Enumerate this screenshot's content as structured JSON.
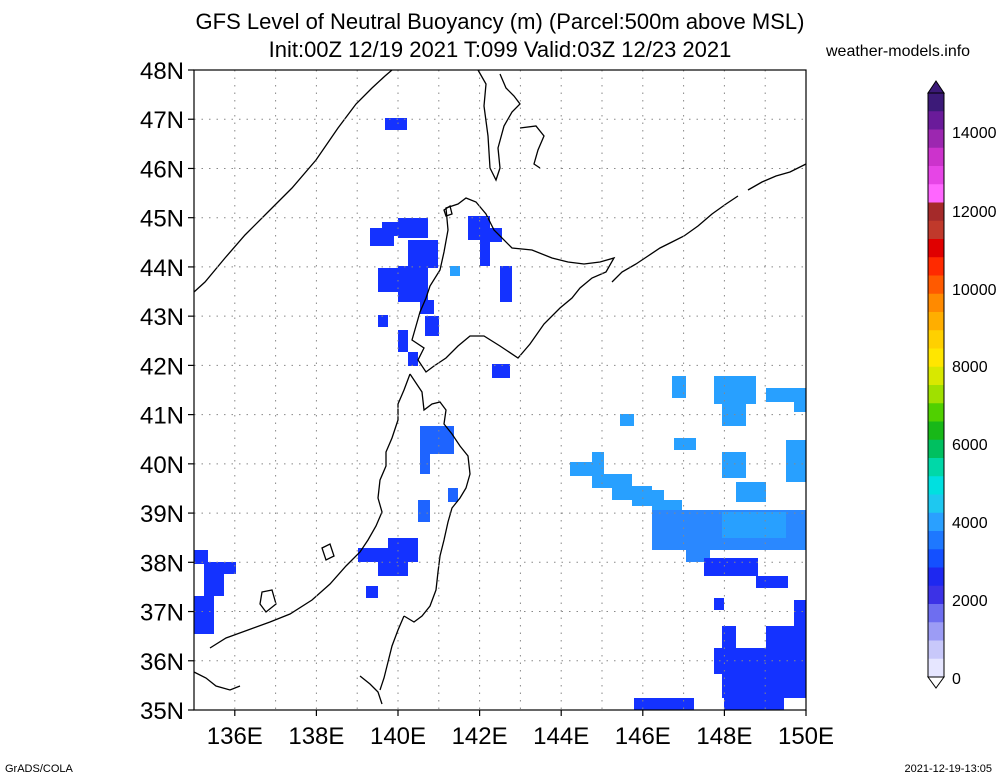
{
  "title_line1": "GFS Level of Neutral Buoyancy (m) (Parcel:500m above MSL)",
  "title_line2": "Init:00Z 12/19 2021 T:099 Valid:03Z 12/23 2021",
  "site": "weather-models.info",
  "footer_left": "GrADS/COLA",
  "footer_right": "2021-12-19-13:05",
  "map": {
    "lat_labels": [
      "48N",
      "47N",
      "46N",
      "45N",
      "44N",
      "43N",
      "42N",
      "41N",
      "40N",
      "39N",
      "38N",
      "37N",
      "36N",
      "35N"
    ],
    "lon_labels": [
      "136E",
      "138E",
      "140E",
      "142E",
      "144E",
      "146E",
      "148E",
      "150E"
    ]
  },
  "colorbar": {
    "labels": [
      "14000",
      "12000",
      "10000",
      "8000",
      "6000",
      "4000",
      "2000",
      "0"
    ],
    "colors": [
      "#3c1a78",
      "#6a1b9a",
      "#9c27b0",
      "#cc33cc",
      "#e645e6",
      "#ff66ff",
      "#a52a2a",
      "#c0392b",
      "#e00000",
      "#ff2a00",
      "#ff5a00",
      "#ff8a00",
      "#ffae00",
      "#ffd000",
      "#ffe600",
      "#d8e800",
      "#a0e000",
      "#50d000",
      "#18b818",
      "#00c060",
      "#00d8a8",
      "#00e0e0",
      "#1ec8f0",
      "#2aa0ff",
      "#1e78ff",
      "#1450ff",
      "#1e28f0",
      "#3c32e6",
      "#6e6ef0",
      "#9c9cf5",
      "#c8c8fa",
      "#e6e6ff"
    ]
  }
}
